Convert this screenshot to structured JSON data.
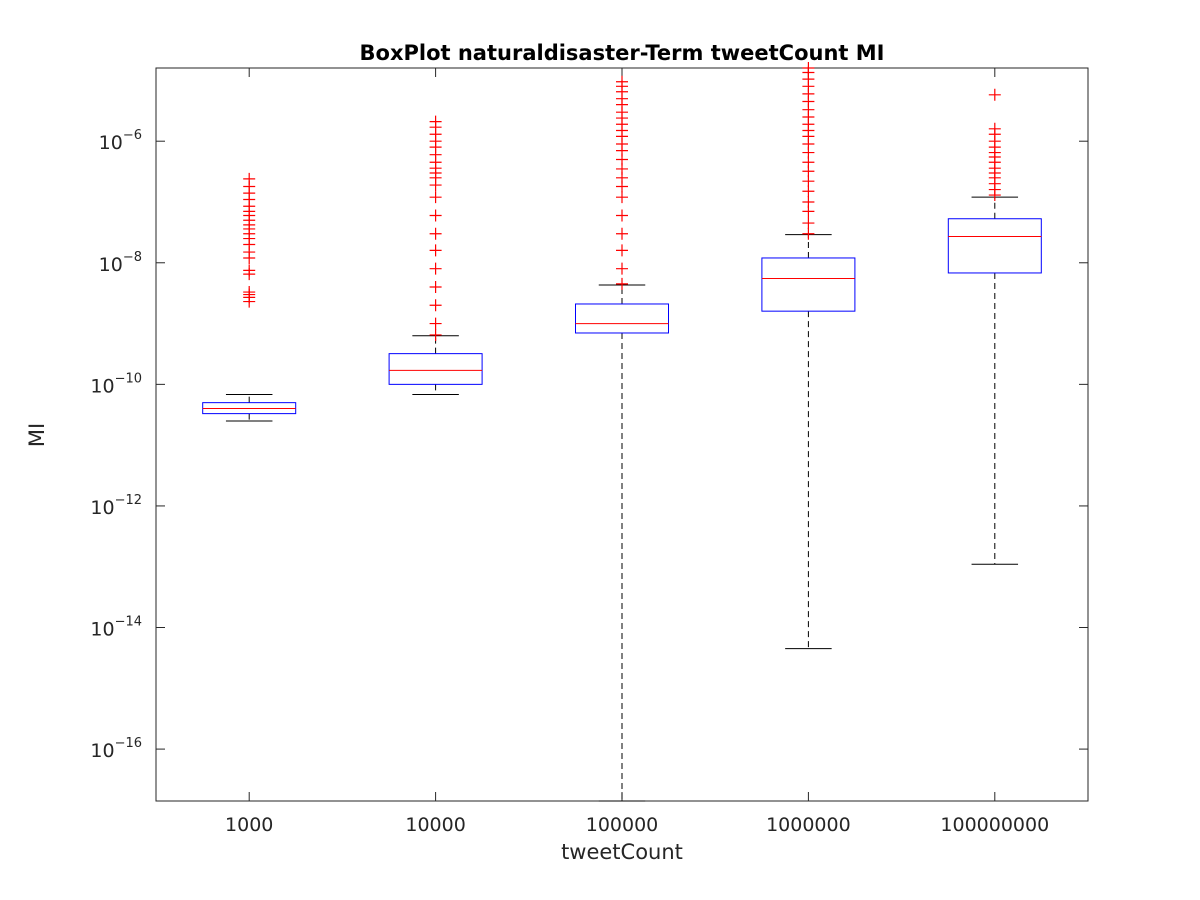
{
  "chart_data": {
    "type": "box",
    "title": "BoxPlot naturaldisaster-Term tweetCount MI",
    "xlabel": "tweetCount",
    "ylabel": "MI",
    "y_scale": "log",
    "ylim": [
      1.4e-17,
      1.6e-05
    ],
    "yticks": [
      {
        "value": 1e-16,
        "base": "10",
        "exp": "−16"
      },
      {
        "value": 1e-14,
        "base": "10",
        "exp": "−14"
      },
      {
        "value": 1e-12,
        "base": "10",
        "exp": "−12"
      },
      {
        "value": 1e-10,
        "base": "10",
        "exp": "−10"
      },
      {
        "value": 1e-08,
        "base": "10",
        "exp": "−8"
      },
      {
        "value": 1e-06,
        "base": "10",
        "exp": "−6"
      }
    ],
    "categories": [
      "1000",
      "10000",
      "100000",
      "1000000",
      "100000000"
    ],
    "boxes": [
      {
        "category": "1000",
        "whisker_low": 2.5e-11,
        "q1": 3.3e-11,
        "median": 4e-11,
        "q3": 5e-11,
        "whisker_high": 6.8e-11,
        "outliers": [
          2.3e-09,
          2.7e-09,
          3e-09,
          3.3e-09,
          6.5e-09,
          7.5e-09,
          1.2e-08,
          1.5e-08,
          2e-08,
          2.5e-08,
          3e-08,
          3.6e-08,
          4.2e-08,
          5e-08,
          6e-08,
          7e-08,
          8.5e-08,
          1.1e-07,
          1.4e-07,
          1.8e-07,
          2.4e-07
        ]
      },
      {
        "category": "10000",
        "whisker_low": 6.8e-11,
        "q1": 1e-10,
        "median": 1.7e-10,
        "q3": 3.2e-10,
        "whisker_high": 6.3e-10,
        "outliers": [
          6.5e-10,
          1e-09,
          2e-09,
          4e-09,
          8e-09,
          1.6e-08,
          3e-08,
          6e-08,
          1.2e-07,
          1.9e-07,
          2.5e-07,
          3e-07,
          3.6e-07,
          4.5e-07,
          6e-07,
          8e-07,
          1e-06,
          1.3e-06,
          1.7e-06,
          2.1e-06
        ]
      },
      {
        "category": "100000",
        "whisker_low": 1.4e-17,
        "q1": 7e-10,
        "median": 1e-09,
        "q3": 2.1e-09,
        "whisker_high": 4.3e-09,
        "outliers": [
          4.5e-09,
          8e-09,
          1.6e-08,
          3e-08,
          6e-08,
          1.2e-07,
          1.8e-07,
          2.5e-07,
          3.5e-07,
          5e-07,
          7e-07,
          9e-07,
          1.2e-06,
          1.5e-06,
          1.9e-06,
          2.4e-06,
          3e-06,
          4e-06,
          5e-06,
          6.5e-06,
          8e-06,
          9.5e-06
        ]
      },
      {
        "category": "1000000",
        "whisker_low": 4.5e-15,
        "q1": 1.6e-09,
        "median": 5.5e-09,
        "q3": 1.2e-08,
        "whisker_high": 2.9e-08,
        "outliers": [
          3e-08,
          4.5e-08,
          7e-08,
          1e-07,
          1.5e-07,
          2.2e-07,
          3.2e-07,
          4.5e-07,
          6.5e-07,
          9e-07,
          1.2e-06,
          1.5e-06,
          1.9e-06,
          2.5e-06,
          3.3e-06,
          4.5e-06,
          6e-06,
          8e-06,
          1.05e-05,
          1.35e-05,
          1.6e-05
        ]
      },
      {
        "category": "100000000",
        "whisker_low": 1.1e-13,
        "q1": 6.8e-09,
        "median": 2.7e-08,
        "q3": 5.3e-08,
        "whisker_high": 1.2e-07,
        "outliers": [
          1.3e-07,
          1.6e-07,
          2e-07,
          2.5e-07,
          3e-07,
          3.6e-07,
          4.5e-07,
          5.5e-07,
          6.5e-07,
          8e-07,
          1e-06,
          1.3e-06,
          1.6e-06,
          5.8e-06
        ]
      }
    ],
    "colors": {
      "box": "#0000ff",
      "median": "#ff0000",
      "whisker": "#000000",
      "outlier": "#ff0000",
      "axis": "#262626"
    },
    "grid": false,
    "legend": false
  }
}
